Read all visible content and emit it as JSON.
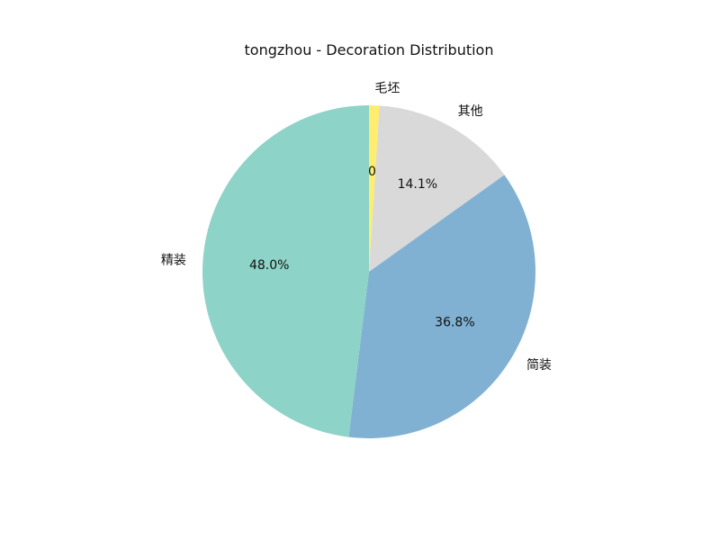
{
  "chart_data": {
    "type": "pie",
    "title": "tongzhou - Decoration Distribution",
    "start_angle_deg": 90,
    "direction": "clockwise",
    "slices": [
      {
        "label": "毛坯",
        "value": 1.0,
        "pct_label": "1.0%",
        "color": "#ffed6f"
      },
      {
        "label": "其他",
        "value": 14.1,
        "pct_label": "14.1%",
        "color": "#d9d9d9"
      },
      {
        "label": "简装",
        "value": 36.8,
        "pct_label": "36.8%",
        "color": "#80b1d3"
      },
      {
        "label": "精装",
        "value": 48.0,
        "pct_label": "48.0%",
        "color": "#8dd3c7"
      }
    ]
  }
}
